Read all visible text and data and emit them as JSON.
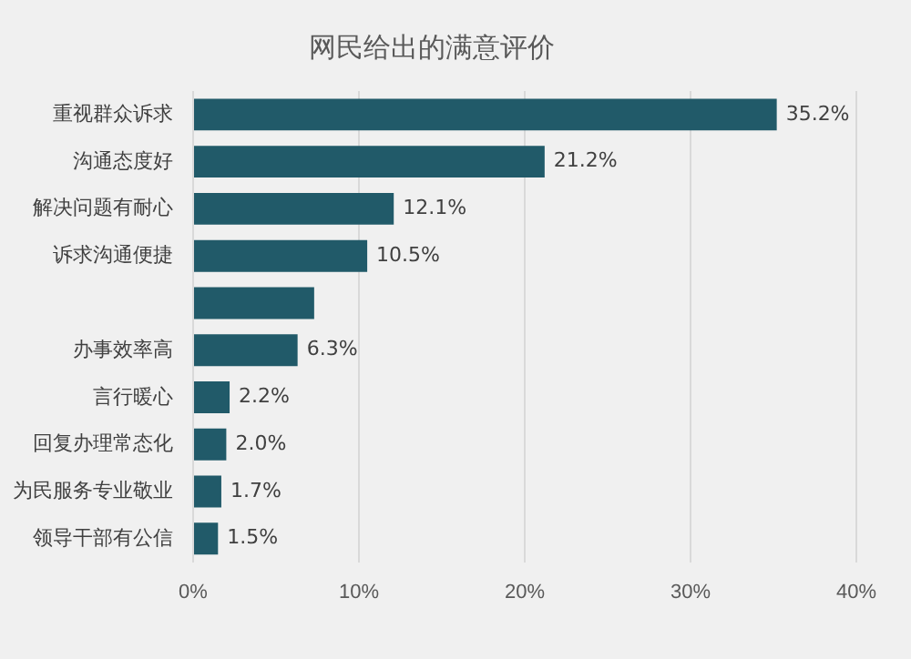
{
  "chart_data": {
    "type": "bar",
    "orientation": "horizontal",
    "title": "网民给出的满意评价",
    "categories": [
      "重视群众诉求",
      "沟通态度好",
      "解决问题有耐心",
      "诉求沟通便捷",
      null,
      "办事效率高",
      "言行暖心",
      "回复办理常态化",
      "为民服务专业敬业",
      "领导干部有公信"
    ],
    "values": [
      35.2,
      21.2,
      12.1,
      10.5,
      7.3,
      6.3,
      2.2,
      2.0,
      1.7,
      1.5
    ],
    "value_labels": [
      "35.2%",
      "21.2%",
      "12.1%",
      "10.5%",
      null,
      "6.3%",
      "2.2%",
      "2.0%",
      "1.7%",
      "1.5%"
    ],
    "color": "#215a69",
    "xlim": [
      0,
      40
    ],
    "xticks": [
      {
        "value": 0,
        "label": "0%"
      },
      {
        "value": 10,
        "label": "10%"
      },
      {
        "value": 20,
        "label": "20%"
      },
      {
        "value": 30,
        "label": "30%"
      },
      {
        "value": 40,
        "label": "40%"
      }
    ],
    "grid": "x"
  }
}
